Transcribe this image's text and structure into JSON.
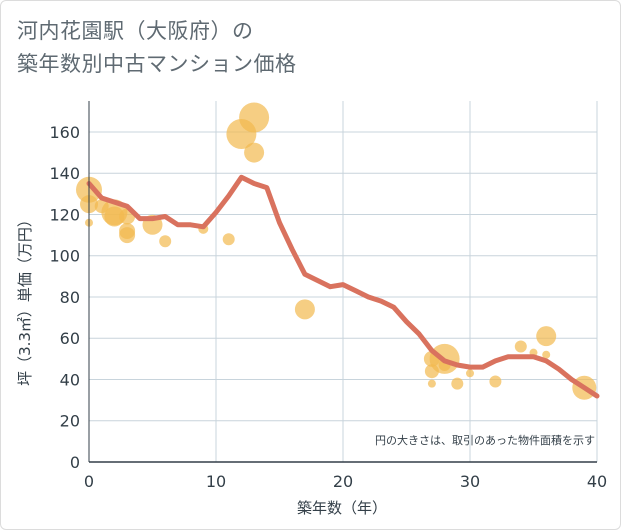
{
  "title_line1": "河内花園駅（大阪府）の",
  "title_line2": "築年数別中古マンション価格",
  "colors": {
    "bubble": "#f2b94f",
    "line": "#d9725e",
    "grid": "#c8d4dc",
    "text": "#333f48"
  },
  "chart_data": {
    "type": "scatter",
    "title": "河内花園駅（大阪府）の築年数別中古マンション価格",
    "xlabel": "築年数（年）",
    "ylabel": "坪（3.3㎡）単価（万円）",
    "xlim": [
      0,
      40
    ],
    "ylim": [
      0,
      175
    ],
    "xticks": [
      0,
      10,
      20,
      30,
      40
    ],
    "yticks": [
      0,
      20,
      40,
      60,
      80,
      100,
      120,
      140,
      160
    ],
    "grid": true,
    "note": "円の大きさは、取引のあった物件面積を示す",
    "bubbles": [
      {
        "x": 0,
        "y": 132,
        "size": 13
      },
      {
        "x": 0,
        "y": 125,
        "size": 9
      },
      {
        "x": 0,
        "y": 116,
        "size": 4
      },
      {
        "x": 1,
        "y": 124,
        "size": 7
      },
      {
        "x": 2,
        "y": 121,
        "size": 13
      },
      {
        "x": 2,
        "y": 119,
        "size": 10
      },
      {
        "x": 3,
        "y": 119,
        "size": 8
      },
      {
        "x": 3,
        "y": 112,
        "size": 8
      },
      {
        "x": 3,
        "y": 110,
        "size": 8
      },
      {
        "x": 5,
        "y": 115,
        "size": 10
      },
      {
        "x": 6,
        "y": 107,
        "size": 6
      },
      {
        "x": 9,
        "y": 113,
        "size": 5
      },
      {
        "x": 11,
        "y": 108,
        "size": 6
      },
      {
        "x": 12,
        "y": 159,
        "size": 15
      },
      {
        "x": 13,
        "y": 167,
        "size": 15
      },
      {
        "x": 13,
        "y": 150,
        "size": 10
      },
      {
        "x": 17,
        "y": 74,
        "size": 10
      },
      {
        "x": 27,
        "y": 50,
        "size": 8
      },
      {
        "x": 27,
        "y": 44,
        "size": 7
      },
      {
        "x": 27,
        "y": 38,
        "size": 4
      },
      {
        "x": 28,
        "y": 50,
        "size": 15
      },
      {
        "x": 28,
        "y": 47,
        "size": 6
      },
      {
        "x": 29,
        "y": 38,
        "size": 6
      },
      {
        "x": 30,
        "y": 43,
        "size": 4
      },
      {
        "x": 32,
        "y": 39,
        "size": 6
      },
      {
        "x": 34,
        "y": 56,
        "size": 6
      },
      {
        "x": 35,
        "y": 53,
        "size": 4
      },
      {
        "x": 36,
        "y": 61,
        "size": 10
      },
      {
        "x": 36,
        "y": 52,
        "size": 4
      },
      {
        "x": 39,
        "y": 36,
        "size": 12
      }
    ],
    "trend": [
      {
        "x": 0,
        "y": 135
      },
      {
        "x": 1,
        "y": 128
      },
      {
        "x": 2,
        "y": 126
      },
      {
        "x": 3,
        "y": 124
      },
      {
        "x": 4,
        "y": 118
      },
      {
        "x": 5,
        "y": 118
      },
      {
        "x": 6,
        "y": 119
      },
      {
        "x": 7,
        "y": 115
      },
      {
        "x": 8,
        "y": 115
      },
      {
        "x": 9,
        "y": 114
      },
      {
        "x": 10,
        "y": 121
      },
      {
        "x": 11,
        "y": 129
      },
      {
        "x": 12,
        "y": 138
      },
      {
        "x": 13,
        "y": 135
      },
      {
        "x": 14,
        "y": 133
      },
      {
        "x": 15,
        "y": 116
      },
      {
        "x": 16,
        "y": 103
      },
      {
        "x": 17,
        "y": 91
      },
      {
        "x": 18,
        "y": 88
      },
      {
        "x": 19,
        "y": 85
      },
      {
        "x": 20,
        "y": 86
      },
      {
        "x": 21,
        "y": 83
      },
      {
        "x": 22,
        "y": 80
      },
      {
        "x": 23,
        "y": 78
      },
      {
        "x": 24,
        "y": 75
      },
      {
        "x": 25,
        "y": 68
      },
      {
        "x": 26,
        "y": 62
      },
      {
        "x": 27,
        "y": 54
      },
      {
        "x": 28,
        "y": 49
      },
      {
        "x": 29,
        "y": 47
      },
      {
        "x": 30,
        "y": 46
      },
      {
        "x": 31,
        "y": 46
      },
      {
        "x": 32,
        "y": 49
      },
      {
        "x": 33,
        "y": 51
      },
      {
        "x": 34,
        "y": 51
      },
      {
        "x": 35,
        "y": 51
      },
      {
        "x": 36,
        "y": 49
      },
      {
        "x": 37,
        "y": 45
      },
      {
        "x": 38,
        "y": 40
      },
      {
        "x": 39,
        "y": 36
      },
      {
        "x": 40,
        "y": 32
      }
    ]
  }
}
